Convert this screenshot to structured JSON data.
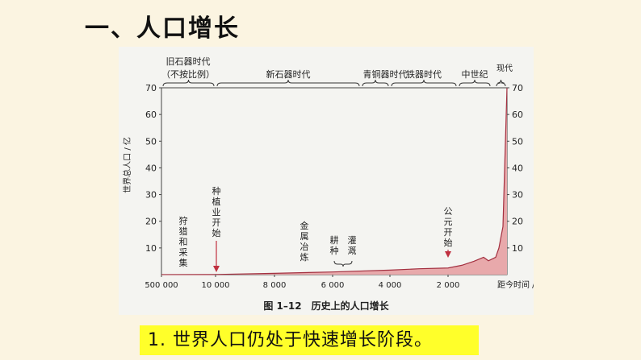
{
  "slide": {
    "title": "一、人口增长",
    "conclusion": "1. 世界人口仍处于快速增长阶段。"
  },
  "chart_data": {
    "type": "area",
    "caption": "图 1–12　历史上的人口增长",
    "ylabel": "世界总人口 / 亿",
    "xlabel": "距今时间 / 年",
    "ylim": [
      0,
      70
    ],
    "y_ticks": [
      10,
      20,
      30,
      40,
      50,
      60,
      70
    ],
    "x_ticks": [
      "500 000",
      "10 000",
      "8 000",
      "6 000",
      "4 000",
      "2 000"
    ],
    "fill_color": "#e8a9ab",
    "line_color": "#a33040",
    "series": [
      {
        "x": [
          "500 000",
          "10 000",
          "8 000",
          "6 000",
          "4 000",
          "3 000",
          "2 000",
          "1 500",
          "1 000",
          "700",
          "500",
          "300",
          "200",
          "100",
          "0"
        ],
        "values": [
          0.02,
          0.05,
          0.5,
          1.0,
          1.7,
          2.2,
          2.5,
          3.5,
          5.0,
          6.5,
          5.2,
          6.5,
          10,
          18,
          70
        ]
      }
    ],
    "periods": [
      {
        "label": "旧石器时代\n（不按比例）",
        "from": "500 000",
        "to": "10 000"
      },
      {
        "label": "新石器时代",
        "from": "10 000",
        "to": "4 500"
      },
      {
        "label": "青铜器时代",
        "from": "4 500",
        "to": "4 000"
      },
      {
        "label": "铁器时代",
        "from": "4 000",
        "to": "1 000"
      },
      {
        "label": "中世纪",
        "from": "1 000",
        "to": "500"
      },
      {
        "label": "现代",
        "from": "300",
        "to": "0"
      }
    ],
    "annotations": [
      {
        "label": "狩猎和采集",
        "x": "~200 000"
      },
      {
        "label": "种植业开始",
        "x": "10 000"
      },
      {
        "label": "金属冶炼",
        "x": "~7 000"
      },
      {
        "label": "耕种",
        "x": "~5 500"
      },
      {
        "label": "灌溉",
        "x": "~4 500"
      },
      {
        "label": "公元开始",
        "x": "2 000"
      }
    ]
  }
}
